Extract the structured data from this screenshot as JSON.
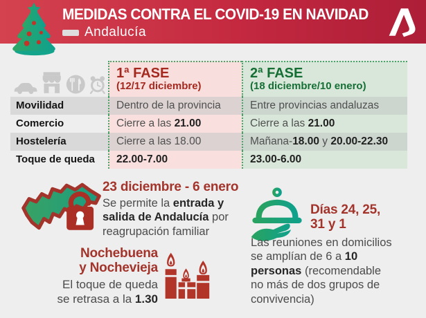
{
  "header": {
    "title": "MEDIDAS CONTRA EL COVID-19 EN NAVIDAD",
    "region": "Andalucía",
    "tree_icon": "christmas-tree-icon",
    "logo_icon": "junta-de-andalucia-logo",
    "bg_gradient": [
      "#d4424f",
      "#ad1e37"
    ]
  },
  "table": {
    "category_icons": [
      "car-icon",
      "store-icon",
      "restaurant-icon",
      "alarm-clock-icon"
    ],
    "phase1": {
      "name": "1ª FASE",
      "dates": "(12/17 diciembre)",
      "color": "#a5281f",
      "bg": "#f8dfdd"
    },
    "phase2": {
      "name": "2ª FASE",
      "dates": "(18 diciembre/10 enero)",
      "color": "#156f35",
      "bg": "#d9e7da"
    },
    "rows": [
      {
        "label": "Movilidad",
        "phase1": [
          {
            "t": "Dentro de la provincia",
            "b": false
          }
        ],
        "phase2": [
          {
            "t": "Entre provincias andaluzas",
            "b": false
          }
        ]
      },
      {
        "label": "Comercio",
        "phase1": [
          {
            "t": "Cierre a las ",
            "b": false
          },
          {
            "t": "21.00",
            "b": true
          }
        ],
        "phase2": [
          {
            "t": "Cierre a las ",
            "b": false
          },
          {
            "t": "21.00",
            "b": true
          }
        ]
      },
      {
        "label": "Hostelería",
        "phase1": [
          {
            "t": "Cierre a las 18.00",
            "b": false
          }
        ],
        "phase2": [
          {
            "t": "Mañana-",
            "b": false
          },
          {
            "t": "18.00",
            "b": true
          },
          {
            "t": " y ",
            "b": false
          },
          {
            "t": "20.00-22.30",
            "b": true
          }
        ]
      },
      {
        "label": "Toque de queda",
        "phase1": [
          {
            "t": "22.00-7.00",
            "b": true
          }
        ],
        "phase2": [
          {
            "t": "23.00-6.00",
            "b": true
          }
        ]
      }
    ]
  },
  "notes": {
    "travel": {
      "icon": "andalucia-map-open-padlock-icon",
      "title": "23 diciembre - 6 enero",
      "body": [
        [
          {
            "t": "Se permite la ",
            "b": false
          },
          {
            "t": "entrada y",
            "b": true
          }
        ],
        [
          {
            "t": "salida de Andalucía",
            "b": true
          },
          {
            "t": " por",
            "b": false
          }
        ],
        [
          {
            "t": "reagrupación familiar",
            "b": false
          }
        ]
      ]
    },
    "eves": {
      "icon": "candles-icon",
      "title_line1": "Nochebuena",
      "title_line2": "y Nochevieja",
      "body": [
        [
          {
            "t": "El toque de queda",
            "b": false
          }
        ],
        [
          {
            "t": "se retrasa a la ",
            "b": false
          },
          {
            "t": "1.30",
            "b": true
          }
        ]
      ]
    },
    "gatherings": {
      "icon": "serving-dish-hand-icon",
      "title_line1": "Días 24, 25,",
      "title_line2": "31 y 1",
      "body": [
        [
          {
            "t": "Las reuniones en domicilios",
            "b": false
          }
        ],
        [
          {
            "t": "se amplían de 6 a ",
            "b": false
          },
          {
            "t": "10",
            "b": true
          }
        ],
        [
          {
            "t": "personas",
            "b": true
          },
          {
            "t": " (recomendable",
            "b": false
          }
        ],
        [
          {
            "t": "no más de dos grupos de",
            "b": false
          }
        ],
        [
          {
            "t": "convivencia)",
            "b": false
          }
        ]
      ]
    }
  },
  "colors": {
    "page_bg": "#efeeee",
    "accent_red": "#a3342b",
    "accent_green": "#156f35",
    "dotted_border_green": "#4aa368",
    "icon_gray": "#c9c9c9",
    "candle_red": "#b2352a",
    "map_green": "#2a9b72",
    "row_gray": "#d9d9d9"
  }
}
